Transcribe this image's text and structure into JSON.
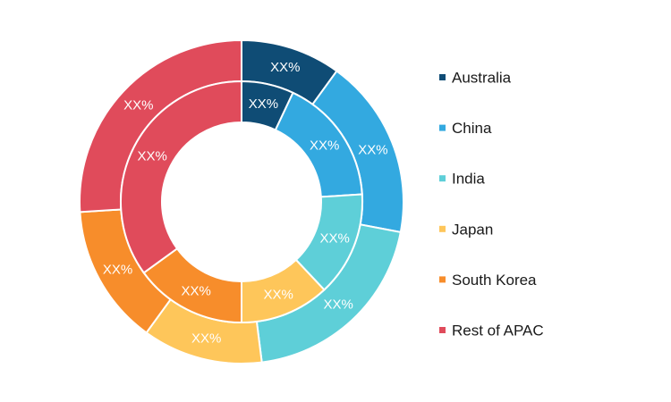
{
  "chart_data": {
    "type": "pie",
    "subtype": "double-donut",
    "legend_position": "right",
    "categories": [
      "Australia",
      "China",
      "India",
      "Japan",
      "South Korea",
      "Rest of APAC"
    ],
    "colors": [
      "#0f4c75",
      "#33a9e0",
      "#5ecfd8",
      "#fec65a",
      "#f78d2b",
      "#e04b5b"
    ],
    "series": [
      {
        "ring": "outer",
        "values": [
          10,
          18,
          20,
          12,
          14,
          26
        ],
        "labels": [
          "XX%",
          "XX%",
          "XX%",
          "XX%",
          "XX%",
          "XX%"
        ]
      },
      {
        "ring": "inner",
        "values": [
          7,
          17,
          14,
          12,
          15,
          35
        ],
        "labels": [
          "XX%",
          "XX%",
          "XX%",
          "XX%",
          "XX%",
          "XX%"
        ]
      }
    ]
  }
}
